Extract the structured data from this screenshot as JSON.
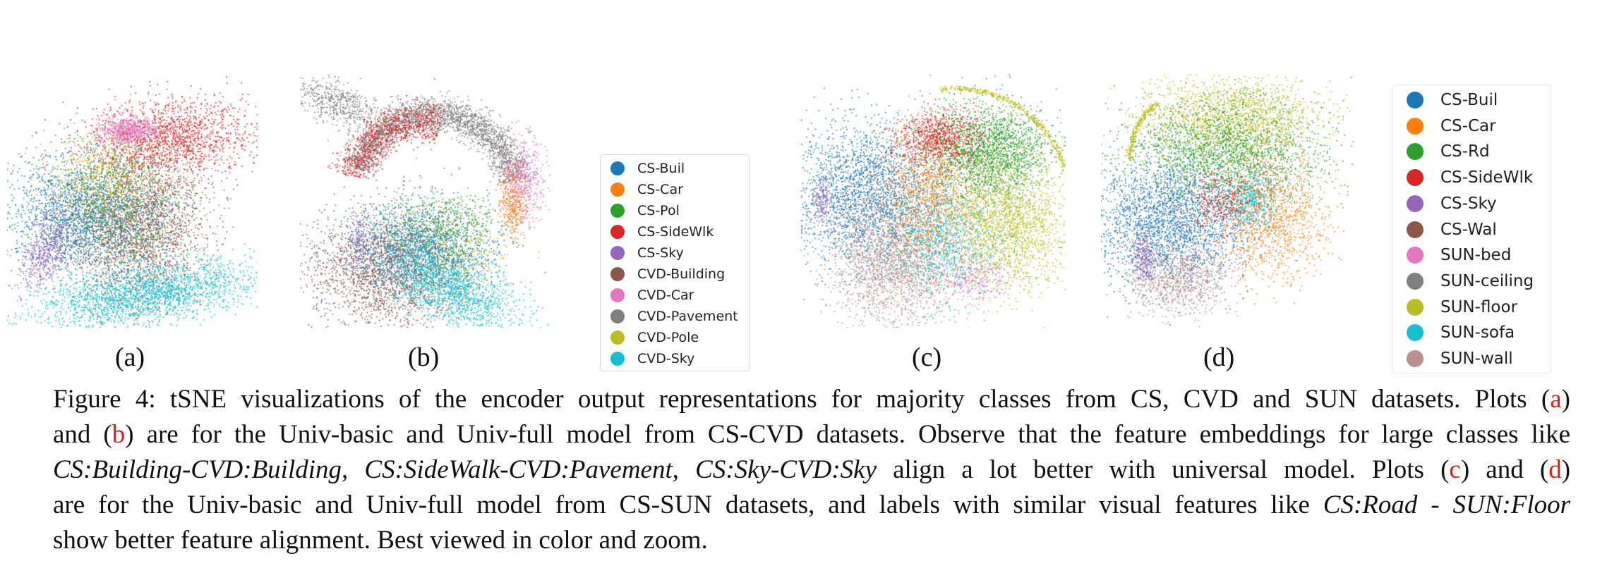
{
  "figure": {
    "panels": [
      {
        "id": "a",
        "label": "(a)"
      },
      {
        "id": "b",
        "label": "(b)"
      },
      {
        "id": "c",
        "label": "(c)"
      },
      {
        "id": "d",
        "label": "(d)"
      }
    ],
    "legend_cs_cvd": {
      "items": [
        {
          "label": "CS-Buil",
          "color": "#1f77b4"
        },
        {
          "label": "CS-Car",
          "color": "#ff7f0e"
        },
        {
          "label": "CS-Pol",
          "color": "#2ca02c"
        },
        {
          "label": "CS-SideWlk",
          "color": "#d62728"
        },
        {
          "label": "CS-Sky",
          "color": "#9467bd"
        },
        {
          "label": "CVD-Building",
          "color": "#8c564b"
        },
        {
          "label": "CVD-Car",
          "color": "#e377c2"
        },
        {
          "label": "CVD-Pavement",
          "color": "#7f7f7f"
        },
        {
          "label": "CVD-Pole",
          "color": "#bcbd22"
        },
        {
          "label": "CVD-Sky",
          "color": "#17becf"
        }
      ]
    },
    "legend_cs_sun": {
      "items": [
        {
          "label": "CS-Buil",
          "color": "#1f77b4"
        },
        {
          "label": "CS-Car",
          "color": "#ff7f0e"
        },
        {
          "label": "CS-Rd",
          "color": "#2ca02c"
        },
        {
          "label": "CS-SideWlk",
          "color": "#d62728"
        },
        {
          "label": "CS-Sky",
          "color": "#9467bd"
        },
        {
          "label": "CS-Wal",
          "color": "#8c564b"
        },
        {
          "label": "SUN-bed",
          "color": "#e377c2"
        },
        {
          "label": "SUN-ceiling",
          "color": "#7f7f7f"
        },
        {
          "label": "SUN-floor",
          "color": "#bcbd22"
        },
        {
          "label": "SUN-sofa",
          "color": "#17becf"
        },
        {
          "label": "SUN-wall",
          "color": "#bc8f8f"
        }
      ]
    }
  },
  "caption": {
    "line1_prefix": "Figure 4: tSNE visualizations of the encoder output representations for majority classes from CS, CVD and SUN datasets. Plots (",
    "ref_a": "a",
    "line1_suffix": ")",
    "line2_prefix": "and (",
    "ref_b": "b",
    "line2_suffix": ") are for the Univ-basic and Univ-full model from CS-CVD datasets. Observe that the feature embeddings for large classes like",
    "line3_it1": "CS:Building-CVD:Building",
    "line3_sep1": ", ",
    "line3_it2": "CS:SideWalk-CVD:Pavement",
    "line3_sep2": ", ",
    "line3_it3": "CS:Sky-CVD:Sky",
    "line3_mid": " align a lot better with universal model. Plots (",
    "ref_c": "c",
    "line3_and": ") and (",
    "ref_d": "d",
    "line3_end": ")",
    "line4_prefix": "are for the Univ-basic and Univ-full model from CS-SUN datasets, and labels with similar visual features like ",
    "line4_it": "CS:Road - SUN:Floor",
    "line5": "show better feature alignment. Best viewed in color and zoom."
  }
}
